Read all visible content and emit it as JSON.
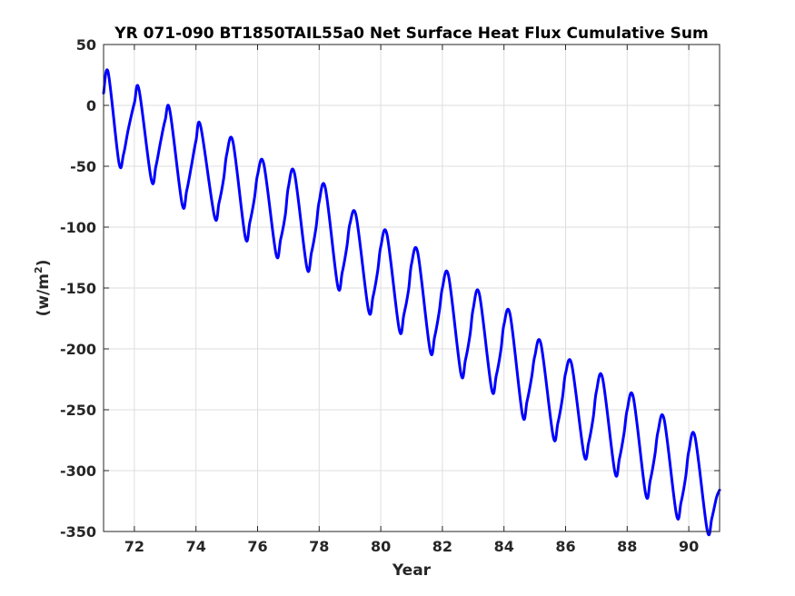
{
  "chart_data": {
    "type": "line",
    "title": "YR 071-090 BT1850TAIL55a0 Net Surface Heat Flux  Cumulative Sum",
    "xlabel": "Year",
    "ylabel": {
      "prefix": "(w/m",
      "sup": "2",
      "suffix": ")"
    },
    "xlim": [
      71,
      91
    ],
    "ylim": [
      -350,
      50
    ],
    "xticks": [
      72,
      74,
      76,
      78,
      80,
      82,
      84,
      86,
      88,
      90
    ],
    "yticks": [
      50,
      0,
      -50,
      -100,
      -150,
      -200,
      -250,
      -300,
      -350
    ],
    "grid": true,
    "series": [
      {
        "color": "#0000ff",
        "line_width": 3,
        "x": [
          71.0,
          71.15,
          71.5,
          71.65,
          71.8,
          72.0,
          72.15,
          72.55,
          72.7,
          72.85,
          73.0,
          73.15,
          73.55,
          73.7,
          73.85,
          74.0,
          74.15,
          74.6,
          74.75,
          74.9,
          75.0,
          75.2,
          75.6,
          75.75,
          75.9,
          76.0,
          76.2,
          76.6,
          76.75,
          76.9,
          77.0,
          77.2,
          77.6,
          77.75,
          77.9,
          78.0,
          78.2,
          78.6,
          78.75,
          78.9,
          79.0,
          79.2,
          79.6,
          79.75,
          79.9,
          80.0,
          80.2,
          80.6,
          80.75,
          80.9,
          81.0,
          81.2,
          81.6,
          81.75,
          81.9,
          82.0,
          82.2,
          82.6,
          82.75,
          82.9,
          83.0,
          83.2,
          83.6,
          83.75,
          83.9,
          84.0,
          84.2,
          84.6,
          84.75,
          84.9,
          85.0,
          85.2,
          85.6,
          85.75,
          85.9,
          86.0,
          86.2,
          86.6,
          86.75,
          86.9,
          87.0,
          87.2,
          87.6,
          87.75,
          87.9,
          88.0,
          88.2,
          88.6,
          88.75,
          88.9,
          89.0,
          89.2,
          89.6,
          89.75,
          89.9,
          90.0,
          90.2,
          90.6,
          90.75,
          90.9,
          91.0
        ],
        "y": [
          10,
          27,
          -47,
          -40,
          -20,
          2,
          13,
          -61,
          -50,
          -30,
          -12,
          -4,
          -81,
          -70,
          -50,
          -29,
          -17,
          -91,
          -80,
          -60,
          -40,
          -30,
          -108,
          -96,
          -76,
          -57,
          -48,
          -122,
          -110,
          -90,
          -67,
          -56,
          -133,
          -121,
          -100,
          -79,
          -68,
          -148,
          -137,
          -116,
          -97,
          -91,
          -168,
          -157,
          -136,
          -116,
          -106,
          -184,
          -172,
          -152,
          -130,
          -121,
          -201,
          -190,
          -169,
          -150,
          -140,
          -220,
          -209,
          -188,
          -167,
          -155,
          -233,
          -222,
          -201,
          -180,
          -172,
          -254,
          -243,
          -223,
          -206,
          -196,
          -272,
          -261,
          -240,
          -220,
          -213,
          -287,
          -277,
          -256,
          -235,
          -224,
          -301,
          -290,
          -269,
          -250,
          -240,
          -319,
          -308,
          -287,
          -268,
          -258,
          -336,
          -326,
          -305,
          -284,
          -272,
          -349,
          -339,
          -322,
          -316
        ]
      }
    ]
  }
}
